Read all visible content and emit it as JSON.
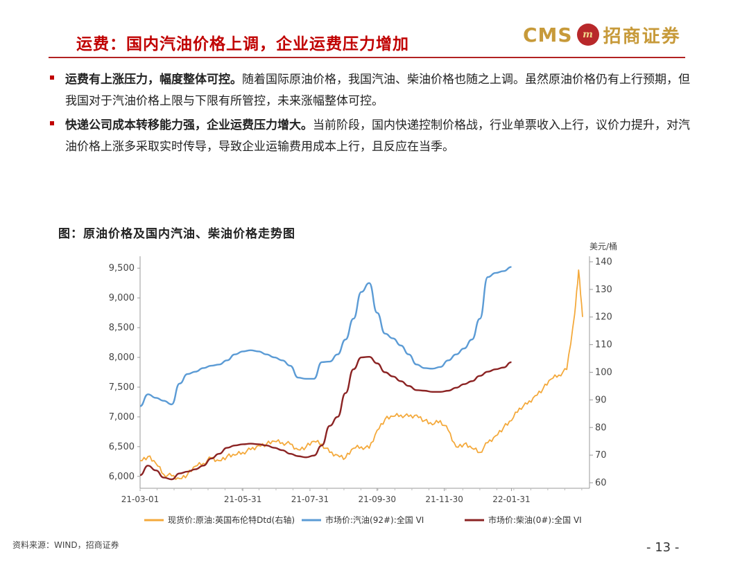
{
  "header": {
    "title": "运费：国内汽油价格上调，企业运费压力增加",
    "logo_text": "CMS",
    "logo_badge": "m",
    "logo_cn": "招商证券"
  },
  "bullets": [
    {
      "bold": "运费有上涨压力，幅度整体可控。",
      "text": "随着国际原油价格，我国汽油、柴油价格也随之上调。虽然原油价格仍有上行预期，但我国对于汽油价格上限与下限有所管控，未来涨幅整体可控。"
    },
    {
      "bold": "快递公司成本转移能力强，企业运费压力增大。",
      "text": "当前阶段，国内快递控制价格战，行业单票收入上行，议价力提升，对汽油价格上涨多采取实时传导，导致企业运输费用成本上行，且反应在当季。"
    }
  ],
  "figure_title": "图：原油价格及国内汽油、柴油价格走势图",
  "source": "资料来源：WIND，招商证券",
  "page_number": "- 13 -",
  "colors": {
    "accent": "#c00000",
    "gold": "#c79a3a",
    "brent": "#f4a93b",
    "gasoline": "#5b9bd5",
    "diesel": "#8b2323"
  },
  "chart_data": {
    "type": "line",
    "title": "原油价格及国内汽油、柴油价格走势图",
    "x_ticks": [
      "21-03-01",
      "21-05-31",
      "21-07-31",
      "21-09-30",
      "21-11-30",
      "22-01-31"
    ],
    "left_axis": {
      "ylim": [
        5800,
        9700
      ],
      "ticks": [
        6000,
        6500,
        7000,
        7500,
        8000,
        8500,
        9000,
        9500
      ],
      "tick_labels": [
        "6,000",
        "6,500",
        "7,000",
        "7,500",
        "8,000",
        "8,500",
        "9,000",
        "9,500"
      ]
    },
    "right_axis": {
      "label": "美元/桶",
      "ylim": [
        58,
        142
      ],
      "ticks": [
        60,
        70,
        80,
        90,
        100,
        110,
        120,
        130,
        140
      ],
      "tick_labels": [
        "60",
        "70",
        "80",
        "90",
        "100",
        "110",
        "120",
        "130",
        "140"
      ]
    },
    "x_range": [
      0,
      56
    ],
    "series": [
      {
        "name": "现货价:原油:英国布伦特Dtd(右轴)",
        "axis": "right",
        "color": "#f4a93b",
        "points": [
          [
            0,
            68
          ],
          [
            1,
            69.5
          ],
          [
            2,
            67
          ],
          [
            3,
            63
          ],
          [
            4,
            62.5
          ],
          [
            5,
            61.5
          ],
          [
            6,
            63
          ],
          [
            7,
            66
          ],
          [
            8,
            67
          ],
          [
            9,
            69
          ],
          [
            10,
            68
          ],
          [
            11,
            69.5
          ],
          [
            12,
            70
          ],
          [
            13,
            71
          ],
          [
            14,
            72
          ],
          [
            15,
            73.5
          ],
          [
            16,
            74
          ],
          [
            17,
            75
          ],
          [
            18,
            74.5
          ],
          [
            19,
            74
          ],
          [
            20,
            72
          ],
          [
            21,
            73
          ],
          [
            22,
            75
          ],
          [
            23,
            74
          ],
          [
            24,
            71
          ],
          [
            25,
            70
          ],
          [
            26,
            69
          ],
          [
            27,
            72.5
          ],
          [
            28,
            73
          ],
          [
            29,
            72.5
          ],
          [
            30,
            79
          ],
          [
            31,
            83
          ],
          [
            32,
            84
          ],
          [
            33,
            84.5
          ],
          [
            34,
            84
          ],
          [
            35,
            84.5
          ],
          [
            36,
            82.5
          ],
          [
            37,
            81
          ],
          [
            38,
            82.5
          ],
          [
            39,
            79
          ],
          [
            40,
            73
          ],
          [
            41,
            74
          ],
          [
            42,
            72.5
          ],
          [
            43,
            71
          ],
          [
            44,
            74.5
          ],
          [
            45,
            77
          ],
          [
            46,
            80
          ],
          [
            47,
            82.5
          ],
          [
            48,
            87
          ],
          [
            49,
            88.5
          ],
          [
            50,
            91.5
          ],
          [
            51,
            94
          ],
          [
            52,
            97.5
          ],
          [
            53,
            99
          ],
          [
            54,
            101
          ],
          [
            55,
            121
          ],
          [
            55.5,
            137
          ],
          [
            56,
            120
          ]
        ]
      },
      {
        "name": "市场价:汽油(92#):全国 VI",
        "axis": "left",
        "color": "#5b9bd5",
        "points": [
          [
            0,
            7180
          ],
          [
            1,
            7380
          ],
          [
            2,
            7320
          ],
          [
            3,
            7270
          ],
          [
            4,
            7210
          ],
          [
            5,
            7560
          ],
          [
            6,
            7720
          ],
          [
            7,
            7760
          ],
          [
            8,
            7820
          ],
          [
            9,
            7860
          ],
          [
            10,
            7880
          ],
          [
            11,
            7950
          ],
          [
            12,
            8050
          ],
          [
            13,
            8100
          ],
          [
            14,
            8120
          ],
          [
            15,
            8100
          ],
          [
            16,
            8050
          ],
          [
            17,
            8000
          ],
          [
            18,
            7950
          ],
          [
            19,
            7860
          ],
          [
            20,
            7660
          ],
          [
            21,
            7640
          ],
          [
            22,
            7640
          ],
          [
            23,
            7920
          ],
          [
            24,
            7930
          ],
          [
            25,
            8050
          ],
          [
            26,
            8300
          ],
          [
            27,
            8650
          ],
          [
            28,
            9100
          ],
          [
            29,
            9250
          ],
          [
            30,
            8750
          ],
          [
            31,
            8400
          ],
          [
            32,
            8320
          ],
          [
            33,
            8200
          ],
          [
            34,
            8050
          ],
          [
            35,
            7880
          ],
          [
            36,
            7820
          ],
          [
            37,
            7810
          ],
          [
            38,
            7840
          ],
          [
            39,
            7950
          ],
          [
            40,
            8050
          ],
          [
            41,
            8150
          ],
          [
            42,
            8300
          ],
          [
            43,
            8650
          ],
          [
            44,
            9350
          ],
          [
            45,
            9420
          ],
          [
            46,
            9450
          ],
          [
            47,
            9520
          ]
        ]
      },
      {
        "name": "市场价:柴油(0#):全国 VI",
        "axis": "left",
        "color": "#8b2323",
        "points": [
          [
            0,
            6020
          ],
          [
            1,
            6180
          ],
          [
            2,
            6100
          ],
          [
            3,
            5980
          ],
          [
            4,
            5950
          ],
          [
            5,
            6050
          ],
          [
            6,
            6080
          ],
          [
            7,
            6120
          ],
          [
            8,
            6180
          ],
          [
            9,
            6300
          ],
          [
            10,
            6380
          ],
          [
            11,
            6480
          ],
          [
            12,
            6520
          ],
          [
            13,
            6540
          ],
          [
            14,
            6550
          ],
          [
            15,
            6540
          ],
          [
            16,
            6520
          ],
          [
            17,
            6480
          ],
          [
            18,
            6440
          ],
          [
            19,
            6380
          ],
          [
            20,
            6340
          ],
          [
            21,
            6320
          ],
          [
            22,
            6350
          ],
          [
            23,
            6520
          ],
          [
            24,
            6850
          ],
          [
            25,
            7000
          ],
          [
            26,
            7400
          ],
          [
            27,
            7800
          ],
          [
            28,
            8000
          ],
          [
            29,
            8010
          ],
          [
            30,
            7900
          ],
          [
            31,
            7750
          ],
          [
            32,
            7680
          ],
          [
            33,
            7600
          ],
          [
            34,
            7520
          ],
          [
            35,
            7450
          ],
          [
            36,
            7440
          ],
          [
            37,
            7420
          ],
          [
            38,
            7420
          ],
          [
            39,
            7440
          ],
          [
            40,
            7490
          ],
          [
            41,
            7550
          ],
          [
            42,
            7600
          ],
          [
            43,
            7690
          ],
          [
            44,
            7760
          ],
          [
            45,
            7800
          ],
          [
            46,
            7830
          ],
          [
            47,
            7920
          ]
        ]
      }
    ]
  }
}
